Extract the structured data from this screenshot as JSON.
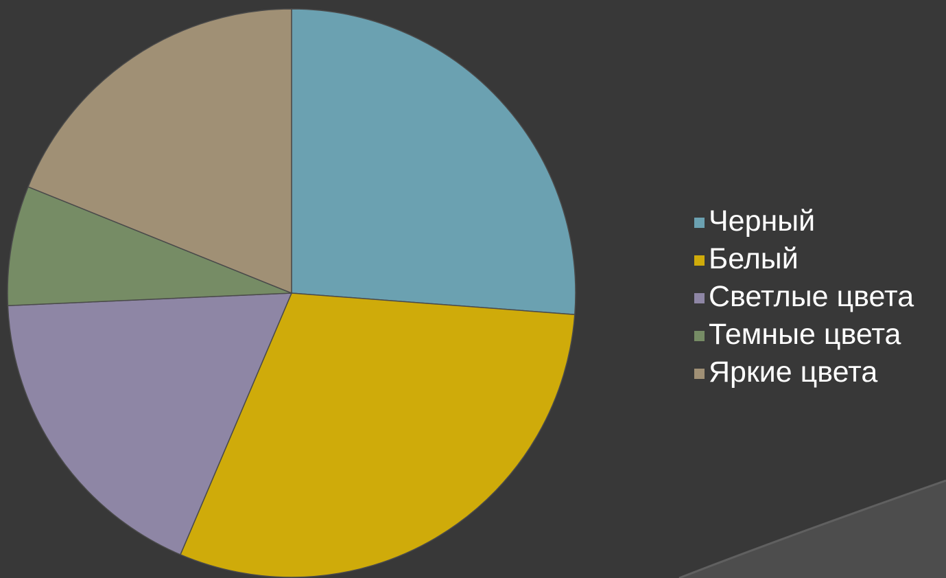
{
  "chart_data": {
    "type": "pie",
    "title": "",
    "legend_placement": "right",
    "start_angle_deg": 0,
    "direction": "clockwise",
    "slices": [
      {
        "label": "Черный",
        "value": 26.2,
        "color": "#6ba1b1"
      },
      {
        "label": "Белый",
        "value": 30.2,
        "color": "#cfab0a"
      },
      {
        "label": "Светлые цвета",
        "value": 17.9,
        "color": "#8e86a5"
      },
      {
        "label": "Темные цвета",
        "value": 6.8,
        "color": "#768c65"
      },
      {
        "label": "Яркие цвета",
        "value": 18.9,
        "color": "#a09075"
      }
    ]
  },
  "theme": {
    "background": "#383838",
    "swoosh": "#4d4d4d",
    "slice_border": "#4a4a4a",
    "legend_text": "#ffffff"
  }
}
